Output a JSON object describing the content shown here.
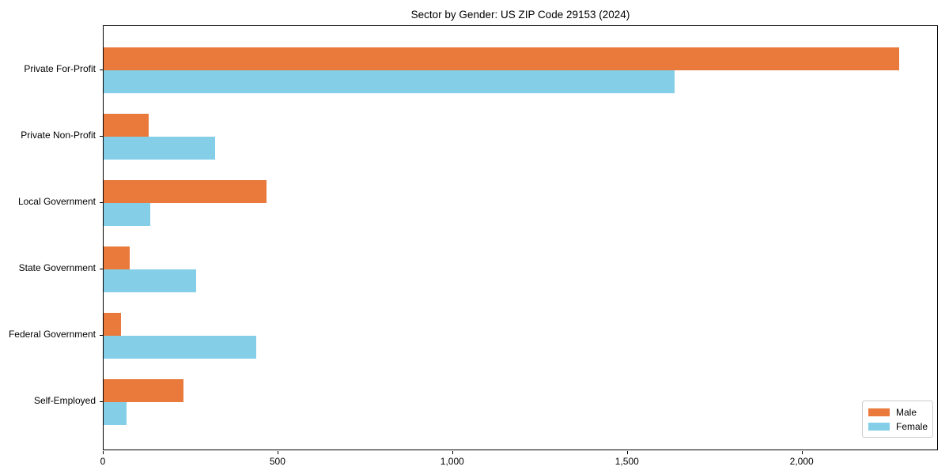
{
  "chart_data": {
    "type": "bar",
    "orientation": "horizontal",
    "title": "Sector by Gender: US ZIP Code 29153 (2024)",
    "categories": [
      "Private For-Profit",
      "Private Non-Profit",
      "Local Government",
      "State Government",
      "Federal Government",
      "Self-Employed"
    ],
    "series": [
      {
        "name": "Male",
        "color": "#E97A3C",
        "values": [
          2277,
          128,
          465,
          74,
          49,
          229
        ]
      },
      {
        "name": "Female",
        "color": "#85CEE8",
        "values": [
          1635,
          318,
          134,
          265,
          437,
          66
        ]
      }
    ],
    "xlabel": "",
    "ylabel": "",
    "xlim": [
      0,
      2390
    ],
    "xticks": [
      {
        "value": 0,
        "label": "0"
      },
      {
        "value": 500,
        "label": "500"
      },
      {
        "value": 1000,
        "label": "1,000"
      },
      {
        "value": 1500,
        "label": "1,500"
      },
      {
        "value": 2000,
        "label": "2,000"
      }
    ],
    "grid": false,
    "legend_position": "lower right",
    "background_color": "#ffffff",
    "text_color": "#000000"
  }
}
